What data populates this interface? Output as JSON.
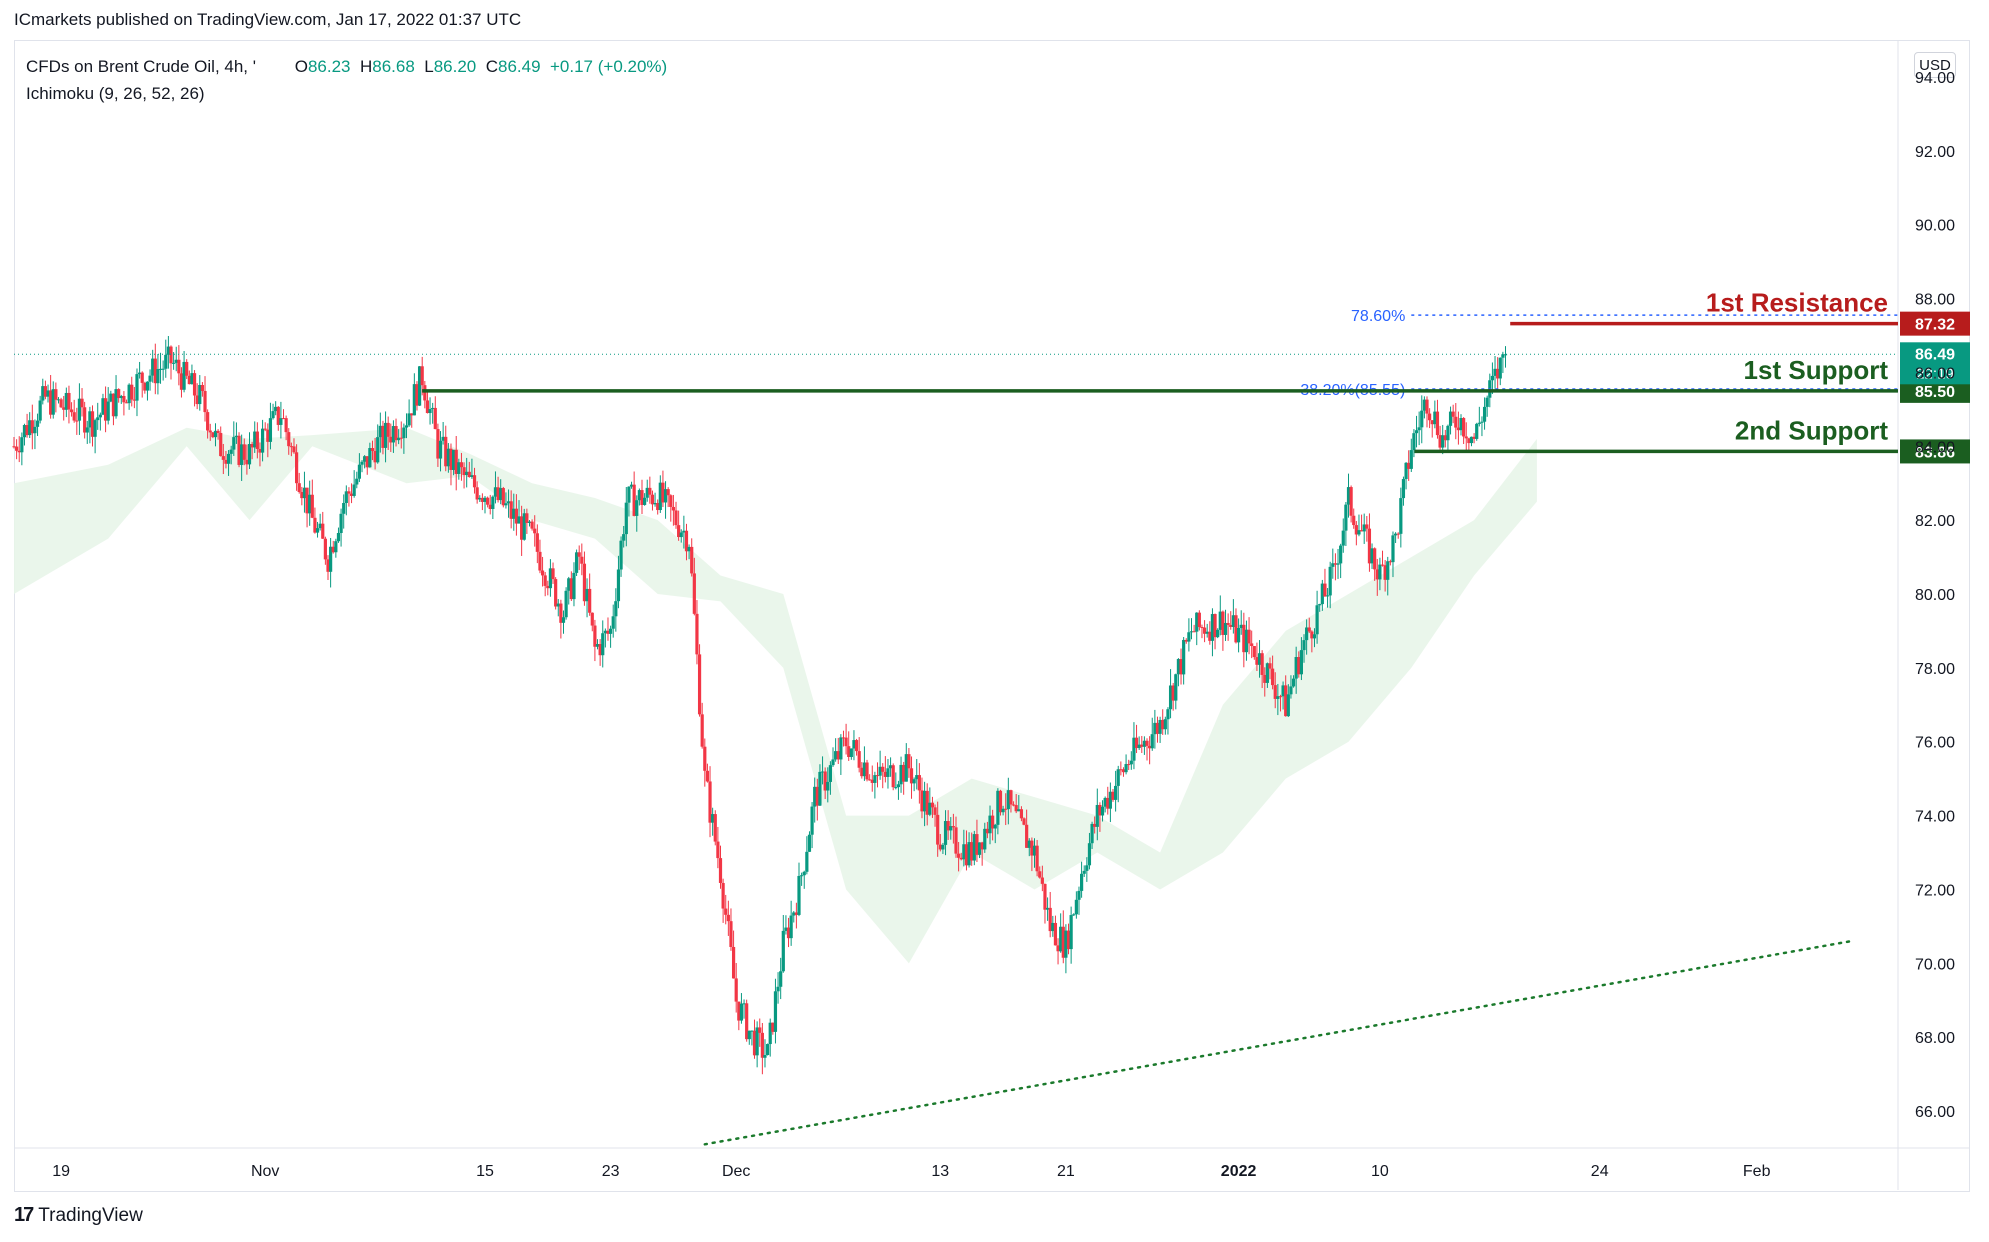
{
  "header": {
    "published_by": "ICmarkets published on TradingView.com, Jan 17, 2022 01:37 UTC"
  },
  "legend": {
    "symbol": "CFDs on Brent Crude Oil, 4h, '",
    "o_label": "O",
    "o_value": "86.23",
    "h_label": "H",
    "h_value": "86.68",
    "l_label": "L",
    "l_value": "86.20",
    "c_label": "C",
    "c_value": "86.49",
    "change": "+0.17 (+0.20%)",
    "indicator": "Ichimoku (9, 26, 52, 26)"
  },
  "currency": "USD",
  "footer": {
    "logo_glyph": "17",
    "logo_text": "TradingView"
  },
  "colors": {
    "up": "#089981",
    "down": "#f23645",
    "resistance": "#b71c1c",
    "support": "#1b5e20",
    "fib": "#2962ff",
    "cloud_up": "#e8f5e9",
    "cloud_down": "#fdecec"
  },
  "chart_data": {
    "type": "candlestick",
    "ylim": [
      65,
      95
    ],
    "y_ticks": [
      "94.00",
      "92.00",
      "90.00",
      "88.00",
      "86.00",
      "84.00",
      "82.00",
      "80.00",
      "78.00",
      "76.00",
      "74.00",
      "72.00",
      "70.00",
      "68.00",
      "66.00"
    ],
    "y_tick_values": [
      94,
      92,
      90,
      88,
      86,
      84,
      82,
      80,
      78,
      76,
      74,
      72,
      70,
      68,
      66
    ],
    "x_ticks": [
      "19",
      "Nov",
      "15",
      "23",
      "Dec",
      "13",
      "21",
      "2022",
      "10",
      "24",
      "Feb"
    ],
    "x_tick_days": [
      0,
      13,
      27,
      35,
      43,
      56,
      64,
      75,
      84,
      98,
      108
    ],
    "x_range_days": [
      -3,
      117
    ],
    "price_path": [
      [
        -3,
        84.0
      ],
      [
        -1,
        85.3
      ],
      [
        2,
        84.7
      ],
      [
        5,
        85.8
      ],
      [
        7,
        86.3
      ],
      [
        9,
        85.2
      ],
      [
        10,
        84.0
      ],
      [
        12,
        83.8
      ],
      [
        14,
        84.9
      ],
      [
        16,
        82.0
      ],
      [
        17,
        81.0
      ],
      [
        18,
        82.5
      ],
      [
        20,
        84.0
      ],
      [
        22,
        84.8
      ],
      [
        23,
        85.9
      ],
      [
        24,
        84.0
      ],
      [
        26,
        83.0
      ],
      [
        28,
        82.5
      ],
      [
        30,
        81.5
      ],
      [
        32,
        79.5
      ],
      [
        33,
        81.0
      ],
      [
        34,
        78.5
      ],
      [
        35,
        79.0
      ],
      [
        36,
        82.5
      ],
      [
        38,
        82.7
      ],
      [
        40,
        81.5
      ],
      [
        41,
        75.0
      ],
      [
        42,
        72.5
      ],
      [
        43,
        69.0
      ],
      [
        44,
        68.0
      ],
      [
        45,
        67.5
      ],
      [
        46,
        70.5
      ],
      [
        47,
        72.0
      ],
      [
        48,
        74.5
      ],
      [
        50,
        76.0
      ],
      [
        52,
        75.0
      ],
      [
        54,
        75.3
      ],
      [
        56,
        73.5
      ],
      [
        58,
        73.0
      ],
      [
        60,
        74.5
      ],
      [
        62,
        73.0
      ],
      [
        63,
        71.0
      ],
      [
        64,
        70.5
      ],
      [
        65,
        72.5
      ],
      [
        66,
        74.0
      ],
      [
        68,
        75.5
      ],
      [
        70,
        76.5
      ],
      [
        72,
        79.0
      ],
      [
        74,
        79.3
      ],
      [
        76,
        78.5
      ],
      [
        78,
        77.0
      ],
      [
        79,
        78.5
      ],
      [
        81,
        80.5
      ],
      [
        82,
        82.5
      ],
      [
        83,
        81.5
      ],
      [
        84,
        80.5
      ],
      [
        85,
        81.5
      ],
      [
        86,
        84.0
      ],
      [
        87,
        85.3
      ],
      [
        88,
        84.2
      ],
      [
        89,
        84.8
      ],
      [
        90,
        84.2
      ],
      [
        91,
        85.5
      ],
      [
        92,
        86.49
      ]
    ],
    "cloud": [
      [
        -3,
        80,
        83
      ],
      [
        3,
        81.5,
        83.5
      ],
      [
        8,
        84.0,
        84.5
      ],
      [
        12,
        82.0,
        84.2
      ],
      [
        16,
        84.0,
        84.3
      ],
      [
        22,
        83.0,
        84.5
      ],
      [
        26,
        83.2,
        83.8
      ],
      [
        30,
        82.0,
        83.0
      ],
      [
        34,
        81.5,
        82.6
      ],
      [
        38,
        80.0,
        82.0
      ],
      [
        42,
        79.8,
        80.5
      ],
      [
        46,
        78.0,
        80.0
      ],
      [
        50,
        72.0,
        74.0
      ],
      [
        54,
        70.0,
        74.0
      ],
      [
        58,
        73.0,
        75.0
      ],
      [
        62,
        72.0,
        74.5
      ],
      [
        66,
        73.0,
        74.0
      ],
      [
        70,
        72.0,
        73.0
      ],
      [
        74,
        73.0,
        77.0
      ],
      [
        78,
        75.0,
        79.0
      ],
      [
        82,
        76.0,
        80.0
      ],
      [
        86,
        78.0,
        81.0
      ],
      [
        90,
        80.5,
        82.0
      ],
      [
        94,
        82.5,
        84.2
      ]
    ],
    "levels": [
      {
        "name": "1st Resistance",
        "value": 87.32,
        "label": "87.32",
        "role": "resistance"
      },
      {
        "name": "1st Support",
        "value": 85.5,
        "label": "85.50",
        "role": "support"
      },
      {
        "name": "2nd Support",
        "value": 83.86,
        "label": "83.86",
        "role": "support"
      }
    ],
    "current_price": {
      "value": 86.49,
      "label": "86.49",
      "countdown": "22:19"
    },
    "fib_levels": [
      {
        "label": "78.60%",
        "value": 87.55
      },
      {
        "label": "38.20%(85.55)",
        "value": 85.55
      }
    ],
    "trendline": [
      [
        41,
        65.1
      ],
      [
        114,
        70.6
      ]
    ]
  }
}
